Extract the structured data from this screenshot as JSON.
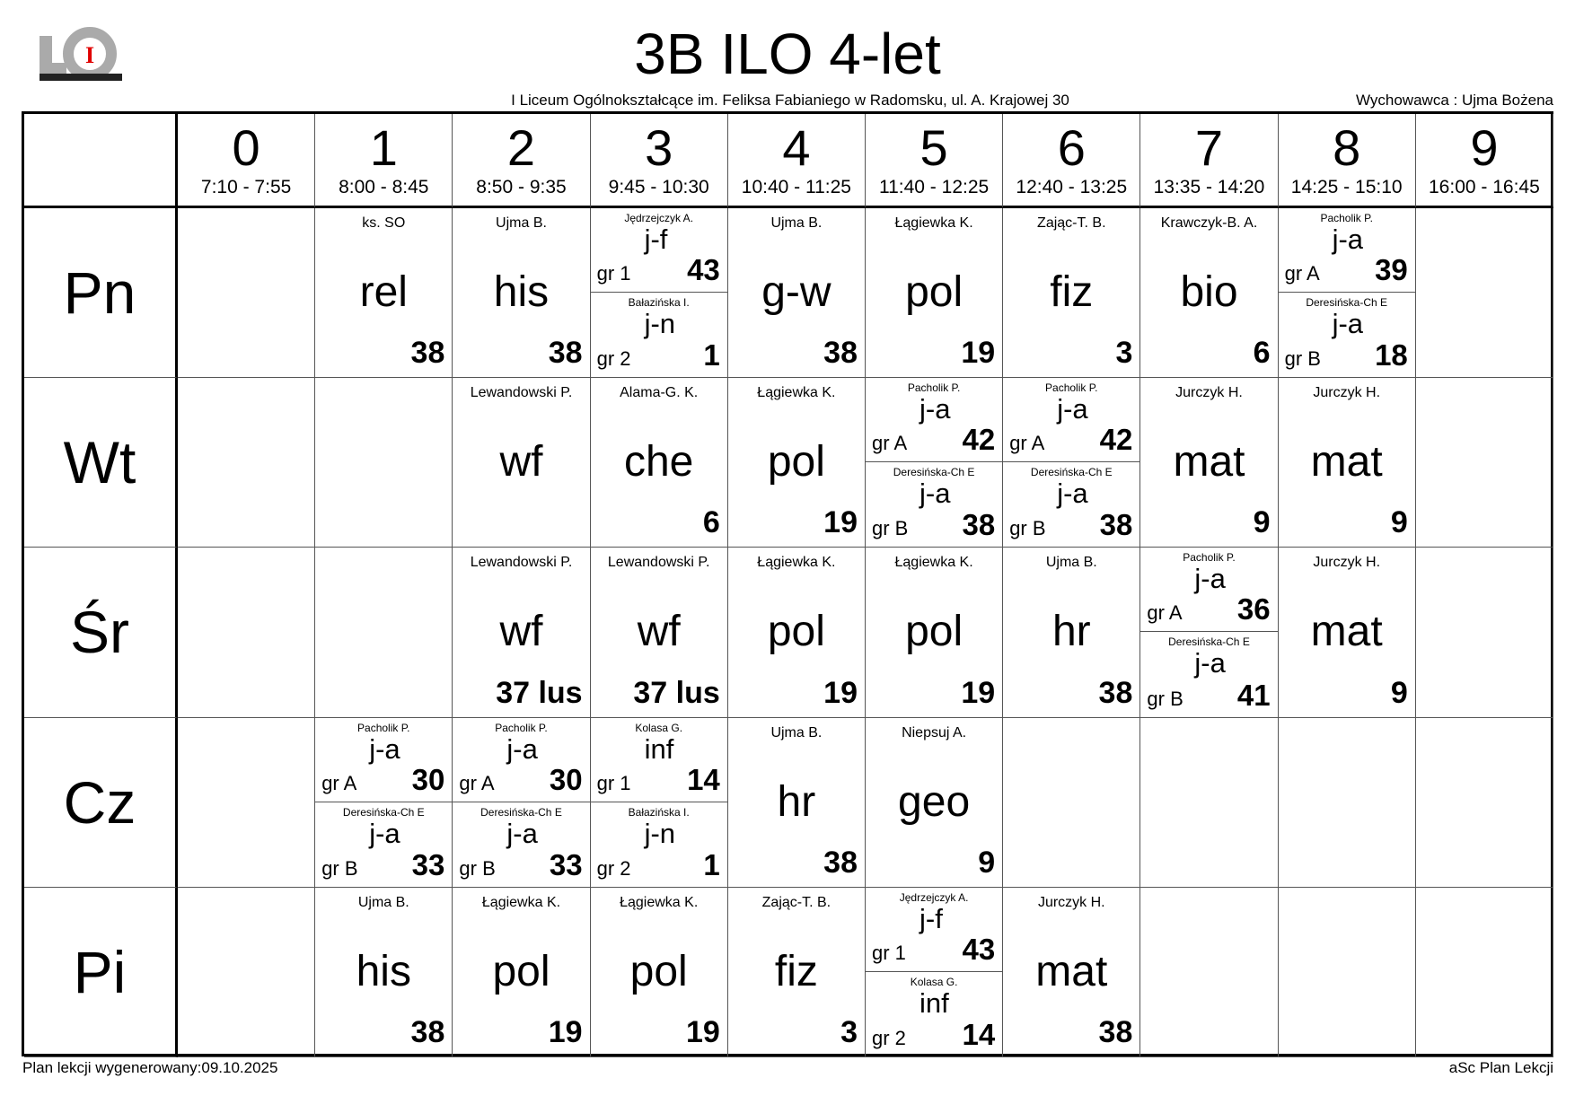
{
  "header": {
    "title": "3B ILO 4-let",
    "school": "I Liceum Ogólnokształcące  im. Feliksa Fabianiego w Radomsku, ul. A. Krajowej 30",
    "tutor": "Wychowawca : Ujma Bożena",
    "logo_text": "LO I"
  },
  "periods": [
    {
      "num": "0",
      "time": "7:10 - 7:55"
    },
    {
      "num": "1",
      "time": "8:00 - 8:45"
    },
    {
      "num": "2",
      "time": "8:50 - 9:35"
    },
    {
      "num": "3",
      "time": "9:45 - 10:30"
    },
    {
      "num": "4",
      "time": "10:40 - 11:25"
    },
    {
      "num": "5",
      "time": "11:40 - 12:25"
    },
    {
      "num": "6",
      "time": "12:40 - 13:25"
    },
    {
      "num": "7",
      "time": "13:35 - 14:20"
    },
    {
      "num": "8",
      "time": "14:25 - 15:10"
    },
    {
      "num": "9",
      "time": "16:00 - 16:45"
    }
  ],
  "days": [
    {
      "label": "Pn",
      "cells": [
        null,
        {
          "teacher": "ks. SO",
          "subject": "rel",
          "room": "38"
        },
        {
          "teacher": "Ujma B.",
          "subject": "his",
          "room": "38"
        },
        {
          "split": [
            {
              "teacher": "Jędrzejczyk A.",
              "group": "gr 1",
              "subject": "j-f",
              "room": "43"
            },
            {
              "teacher": "Bałazińska I.",
              "group": "gr 2",
              "subject": "j-n",
              "room": "1"
            }
          ]
        },
        {
          "teacher": "Ujma B.",
          "subject": "g-w",
          "room": "38"
        },
        {
          "teacher": "Łągiewka K.",
          "subject": "pol",
          "room": "19"
        },
        {
          "teacher": "Zając-T. B.",
          "subject": "fiz",
          "room": "3"
        },
        {
          "teacher": "Krawczyk-B. A.",
          "subject": "bio",
          "room": "6"
        },
        {
          "split": [
            {
              "teacher": "Pacholik P.",
              "group": "gr A",
              "subject": "j-a",
              "room": "39"
            },
            {
              "teacher": "Deresińska-Ch E",
              "group": "gr B",
              "subject": "j-a",
              "room": "18"
            }
          ]
        },
        null
      ]
    },
    {
      "label": "Wt",
      "cells": [
        null,
        null,
        {
          "teacher": "Lewandowski P.",
          "subject": "wf",
          "room": ""
        },
        {
          "teacher": "Alama-G. K.",
          "subject": "che",
          "room": "6"
        },
        {
          "teacher": "Łągiewka K.",
          "subject": "pol",
          "room": "19"
        },
        {
          "split": [
            {
              "teacher": "Pacholik P.",
              "group": "gr A",
              "subject": "j-a",
              "room": "42"
            },
            {
              "teacher": "Deresińska-Ch E",
              "group": "gr B",
              "subject": "j-a",
              "room": "38"
            }
          ]
        },
        {
          "split": [
            {
              "teacher": "Pacholik P.",
              "group": "gr A",
              "subject": "j-a",
              "room": "42"
            },
            {
              "teacher": "Deresińska-Ch E",
              "group": "gr B",
              "subject": "j-a",
              "room": "38"
            }
          ]
        },
        {
          "teacher": "Jurczyk H.",
          "subject": "mat",
          "room": "9"
        },
        {
          "teacher": "Jurczyk H.",
          "subject": "mat",
          "room": "9"
        },
        null
      ]
    },
    {
      "label": "Śr",
      "cells": [
        null,
        null,
        {
          "teacher": "Lewandowski P.",
          "subject": "wf",
          "room": "37 lus"
        },
        {
          "teacher": "Lewandowski P.",
          "subject": "wf",
          "room": "37 lus"
        },
        {
          "teacher": "Łągiewka K.",
          "subject": "pol",
          "room": "19"
        },
        {
          "teacher": "Łągiewka K.",
          "subject": "pol",
          "room": "19"
        },
        {
          "teacher": "Ujma B.",
          "subject": "hr",
          "room": "38"
        },
        {
          "split": [
            {
              "teacher": "Pacholik P.",
              "group": "gr A",
              "subject": "j-a",
              "room": "36"
            },
            {
              "teacher": "Deresińska-Ch E",
              "group": "gr B",
              "subject": "j-a",
              "room": "41"
            }
          ]
        },
        {
          "teacher": "Jurczyk H.",
          "subject": "mat",
          "room": "9"
        },
        null
      ]
    },
    {
      "label": "Cz",
      "cells": [
        null,
        {
          "split": [
            {
              "teacher": "Pacholik P.",
              "group": "gr A",
              "subject": "j-a",
              "room": "30"
            },
            {
              "teacher": "Deresińska-Ch E",
              "group": "gr B",
              "subject": "j-a",
              "room": "33"
            }
          ]
        },
        {
          "split": [
            {
              "teacher": "Pacholik P.",
              "group": "gr A",
              "subject": "j-a",
              "room": "30"
            },
            {
              "teacher": "Deresińska-Ch E",
              "group": "gr B",
              "subject": "j-a",
              "room": "33"
            }
          ]
        },
        {
          "split": [
            {
              "teacher": "Kolasa G.",
              "group": "gr 1",
              "subject": "inf",
              "room": "14"
            },
            {
              "teacher": "Bałazińska I.",
              "group": "gr 2",
              "subject": "j-n",
              "room": "1"
            }
          ]
        },
        {
          "teacher": "Ujma B.",
          "subject": "hr",
          "room": "38"
        },
        {
          "teacher": "Niepsuj A.",
          "subject": "geo",
          "room": "9"
        },
        null,
        null,
        null,
        null
      ]
    },
    {
      "label": "Pi",
      "cells": [
        null,
        {
          "teacher": "Ujma B.",
          "subject": "his",
          "room": "38"
        },
        {
          "teacher": "Łągiewka K.",
          "subject": "pol",
          "room": "19"
        },
        {
          "teacher": "Łągiewka K.",
          "subject": "pol",
          "room": "19"
        },
        {
          "teacher": "Zając-T. B.",
          "subject": "fiz",
          "room": "3"
        },
        {
          "split": [
            {
              "teacher": "Jędrzejczyk A.",
              "group": "gr 1",
              "subject": "j-f",
              "room": "43"
            },
            {
              "teacher": "Kolasa G.",
              "group": "gr 2",
              "subject": "inf",
              "room": "14"
            }
          ]
        },
        {
          "teacher": "Jurczyk H.",
          "subject": "mat",
          "room": "38"
        },
        null,
        null,
        null
      ]
    }
  ],
  "footer": {
    "generated": "Plan lekcji wygenerowany:09.10.2025",
    "software": "aSc Plan Lekcji"
  },
  "colors": {
    "logo_gray": "#aaaaaa",
    "logo_red": "#e00000",
    "grid": "#000000"
  }
}
